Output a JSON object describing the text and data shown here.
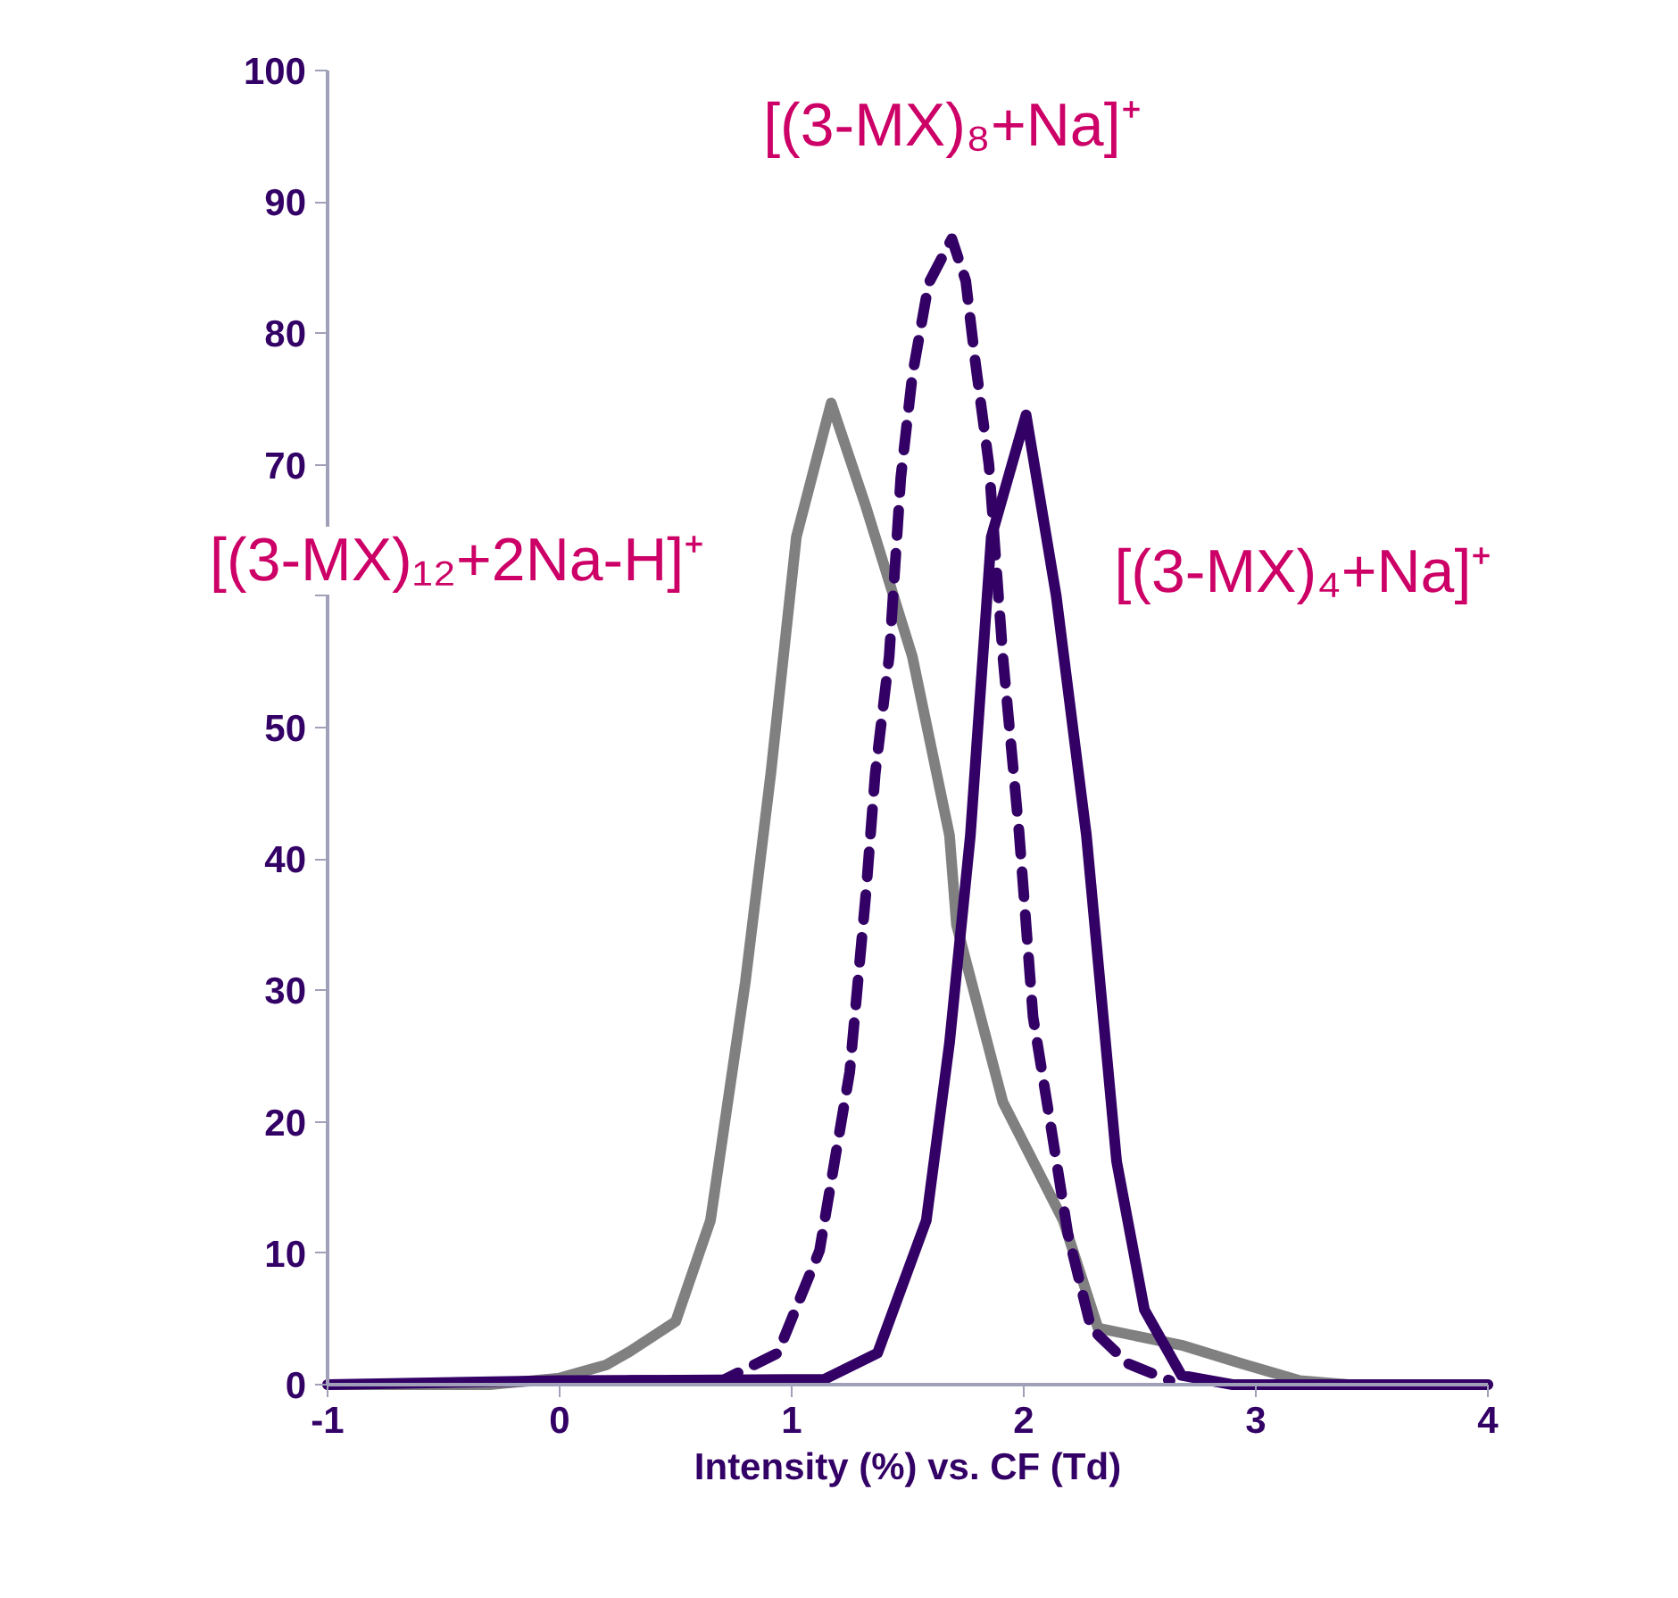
{
  "chart_data": {
    "type": "line",
    "xlabel": "Intensity (%) vs. CF (Td)",
    "xlim": [
      -1,
      4
    ],
    "ylim": [
      0,
      100
    ],
    "xticks": [
      -1,
      0,
      1,
      2,
      3,
      4
    ],
    "yticks": [
      0,
      10,
      20,
      30,
      40,
      50,
      {
        "value": 60,
        "label": null
      },
      70,
      80,
      90,
      100
    ],
    "grid": false,
    "series": [
      {
        "name": "[(3-MX)₁₂+2Na-H]⁺",
        "color": "#808080",
        "line_style": "solid",
        "x": [
          -1,
          -0.3,
          0,
          0.2,
          0.3,
          0.5,
          0.65,
          0.8,
          0.91,
          1.02,
          1.17,
          1.32,
          1.52,
          1.68,
          1.71,
          1.91,
          2.17,
          2.32,
          2.68,
          2.94,
          3.19,
          3.4,
          4
        ],
        "values": [
          0,
          0,
          0.5,
          1.5,
          2.5,
          4.8,
          12.5,
          30.6,
          46.5,
          64.5,
          74.7,
          66.8,
          55.4,
          41.8,
          35,
          21.5,
          12.5,
          4.3,
          3,
          1.6,
          0.3,
          0,
          0
        ]
      },
      {
        "name": "[(3-MX)₈+Na]⁺",
        "color": "#330066",
        "line_style": "dashed",
        "x": [
          0.3,
          0.7,
          0.94,
          1.12,
          1.25,
          1.32,
          1.36,
          1.42,
          1.47,
          1.52,
          1.59,
          1.69,
          1.75,
          1.79,
          1.85,
          1.91,
          1.98,
          2.04,
          2.12,
          2.19,
          2.29,
          2.45,
          2.63
        ],
        "values": [
          0.3,
          0.3,
          2.4,
          10.2,
          23.8,
          37.4,
          46.5,
          55.4,
          69,
          76.8,
          83.8,
          87.2,
          84,
          78,
          70,
          55.4,
          42,
          28,
          19.3,
          11.5,
          4.3,
          1.6,
          0.3
        ]
      },
      {
        "name": "[(3-MX)₄+Na]⁺",
        "color": "#330066",
        "line_style": "solid",
        "x": [
          -1,
          0,
          1.14,
          1.37,
          1.58,
          1.68,
          1.77,
          1.86,
          2.01,
          2.14,
          2.27,
          2.4,
          2.52,
          2.68,
          2.9,
          4
        ],
        "values": [
          0,
          0.3,
          0.4,
          2.4,
          12.5,
          26,
          41.8,
          64.5,
          73.8,
          60,
          41.8,
          17,
          5.7,
          0.7,
          0,
          0
        ]
      }
    ]
  }
}
